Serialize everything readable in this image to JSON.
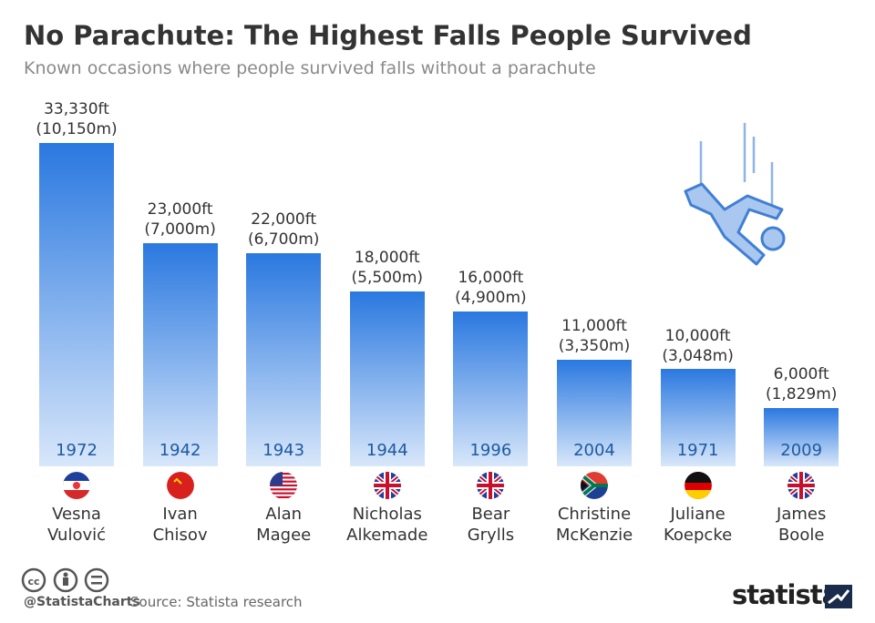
{
  "chart_data": {
    "type": "bar",
    "title": "No Parachute: The Highest Falls People Survived",
    "subtitle": "Known occasions where people survived falls without a parachute",
    "categories": [
      "Vesna\nVulović",
      "Ivan\nChisov",
      "Alan\nMagee",
      "Nicholas\nAlkemade",
      "Bear\nGrylls",
      "Christine\nMcKenzie",
      "Juliane\nKoepcke",
      "James\nBoole"
    ],
    "years": [
      "1972",
      "1942",
      "1943",
      "1944",
      "1996",
      "2004",
      "1971",
      "2009"
    ],
    "values": [
      33330,
      23000,
      22000,
      18000,
      16000,
      11000,
      10000,
      6000
    ],
    "value_labels": [
      "33,330ft\n(10,150m)",
      "23,000ft\n(7,000m)",
      "22,000ft\n(6,700m)",
      "18,000ft\n(5,500m)",
      "16,000ft\n(4,900m)",
      "11,000ft\n(3,350m)",
      "10,000ft\n(3,048m)",
      "6,000ft\n(1,829m)"
    ],
    "color": "#2a78e0",
    "ylim": [
      0,
      33330
    ]
  },
  "footer": {
    "handle": "@StatistaCharts",
    "source": "Source: Statista research",
    "brand": "statista"
  }
}
